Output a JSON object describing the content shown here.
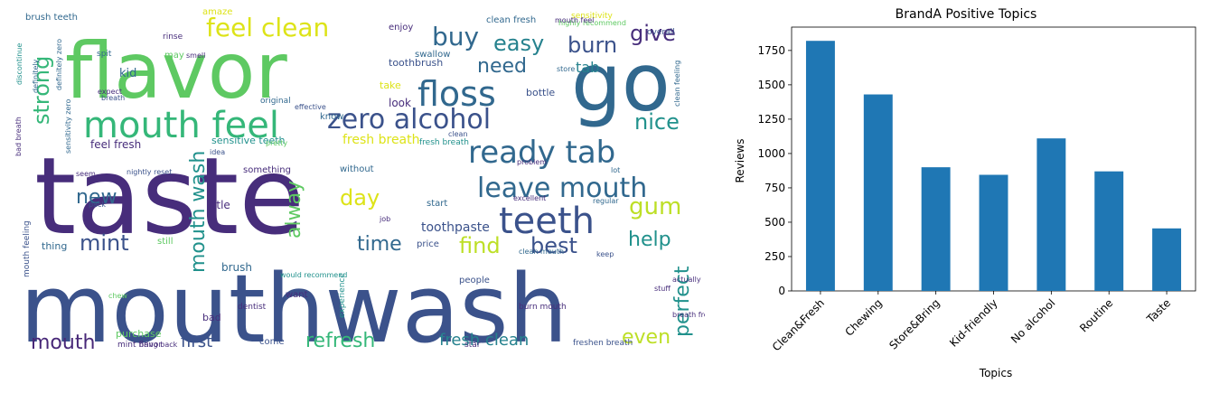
{
  "wordcloud": {
    "words": [
      {
        "text": "taste",
        "color": "#472d7b"
      },
      {
        "text": "mouthwash",
        "color": "#3b528b"
      },
      {
        "text": "flavor",
        "color": "#5ec962"
      },
      {
        "text": "go",
        "color": "#31688e"
      },
      {
        "text": "mouth feel",
        "color": "#35b779"
      },
      {
        "text": "zero alcohol",
        "color": "#3b528b"
      },
      {
        "text": "floss",
        "color": "#31688e"
      },
      {
        "text": "ready tab",
        "color": "#31688e"
      },
      {
        "text": "teeth",
        "color": "#3b528b"
      },
      {
        "text": "leave mouth",
        "color": "#31688e"
      },
      {
        "text": "feel clean",
        "color": "#dde318"
      },
      {
        "text": "buy",
        "color": "#31688e"
      },
      {
        "text": "easy",
        "color": "#26828e"
      },
      {
        "text": "burn",
        "color": "#3b528b"
      },
      {
        "text": "give",
        "color": "#472d7b"
      },
      {
        "text": "need",
        "color": "#31688e"
      },
      {
        "text": "tab",
        "color": "#26828e"
      },
      {
        "text": "nice",
        "color": "#21918c"
      },
      {
        "text": "strong",
        "color": "#35b779"
      },
      {
        "text": "mouth wash",
        "color": "#21918c"
      },
      {
        "text": "new",
        "color": "#31688e"
      },
      {
        "text": "day",
        "color": "#dde318"
      },
      {
        "text": "gum",
        "color": "#bddf26"
      },
      {
        "text": "alway",
        "color": "#5ec962"
      },
      {
        "text": "mint",
        "color": "#3b528b"
      },
      {
        "text": "time",
        "color": "#31688e"
      },
      {
        "text": "find",
        "color": "#bddf26"
      },
      {
        "text": "best",
        "color": "#3b528b"
      },
      {
        "text": "help",
        "color": "#21918c"
      },
      {
        "text": "perfect",
        "color": "#21918c"
      },
      {
        "text": "mouth",
        "color": "#482878"
      },
      {
        "text": "first",
        "color": "#3b528b"
      },
      {
        "text": "refresh",
        "color": "#35b779"
      },
      {
        "text": "fresh clean",
        "color": "#26828e"
      },
      {
        "text": "even",
        "color": "#bddf26"
      },
      {
        "text": "fresh breath",
        "color": "#dde318"
      },
      {
        "text": "toothpaste",
        "color": "#3b528b"
      },
      {
        "text": "feel fresh",
        "color": "#472d7b"
      },
      {
        "text": "sensitive teeth",
        "color": "#21918c"
      },
      {
        "text": "clean fresh",
        "color": "#31688e"
      },
      {
        "text": "toothbrush",
        "color": "#3b528b"
      },
      {
        "text": "bottle",
        "color": "#3b528b"
      },
      {
        "text": "look",
        "color": "#472d7b"
      },
      {
        "text": "kid",
        "color": "#31688e"
      },
      {
        "text": "little",
        "color": "#472d7b"
      },
      {
        "text": "brush",
        "color": "#31688e"
      },
      {
        "text": "purchase",
        "color": "#5ec962"
      },
      {
        "text": "without",
        "color": "#31688e"
      },
      {
        "text": "enjoy",
        "color": "#472d7b"
      },
      {
        "text": "amaze",
        "color": "#dde318"
      },
      {
        "text": "brush teeth",
        "color": "#31688e"
      },
      {
        "text": "swallow",
        "color": "#31688e"
      },
      {
        "text": "take",
        "color": "#dde318"
      },
      {
        "text": "thing",
        "color": "#31688e"
      },
      {
        "text": "bad",
        "color": "#472d7b"
      },
      {
        "text": "want",
        "color": "#472d7b"
      },
      {
        "text": "people",
        "color": "#3b528b"
      },
      {
        "text": "price",
        "color": "#3b528b"
      },
      {
        "text": "still",
        "color": "#5ec962"
      },
      {
        "text": "know",
        "color": "#31688e"
      },
      {
        "text": "start",
        "color": "#31688e"
      },
      {
        "text": "something",
        "color": "#472d7b"
      },
      {
        "text": "dentist",
        "color": "#472d7b"
      },
      {
        "text": "come",
        "color": "#3b528b"
      },
      {
        "text": "mint flavor",
        "color": "#472d7b"
      },
      {
        "text": "burn mouth",
        "color": "#472d7b"
      },
      {
        "text": "experience",
        "color": "#21918c"
      },
      {
        "text": "fresh breath",
        "color": "#21918c"
      },
      {
        "text": "bring back",
        "color": "#472d7b"
      },
      {
        "text": "star",
        "color": "#472d7b"
      },
      {
        "text": "freshen breath",
        "color": "#3b528b"
      },
      {
        "text": "sensitivity",
        "color": "#dde318"
      },
      {
        "text": "highly recommend",
        "color": "#5ec962"
      },
      {
        "text": "overall",
        "color": "#3b528b"
      },
      {
        "text": "rinse",
        "color": "#472d7b"
      },
      {
        "text": "spit",
        "color": "#31688e"
      },
      {
        "text": "may",
        "color": "#5ec962"
      },
      {
        "text": "smell",
        "color": "#472d7b"
      },
      {
        "text": "expect",
        "color": "#472d7b"
      },
      {
        "text": "original",
        "color": "#31688e"
      },
      {
        "text": "effective",
        "color": "#3b528b"
      },
      {
        "text": "idea",
        "color": "#3b528b"
      },
      {
        "text": "pretty",
        "color": "#5ec962"
      },
      {
        "text": "nightly reset",
        "color": "#3b528b"
      },
      {
        "text": "mouth feeling",
        "color": "#3b528b"
      },
      {
        "text": "pack",
        "color": "#3b528b"
      },
      {
        "text": "seem",
        "color": "#472d7b"
      },
      {
        "text": "excellent",
        "color": "#472d7b"
      },
      {
        "text": "regular",
        "color": "#31688e"
      },
      {
        "text": "lot",
        "color": "#31688e"
      },
      {
        "text": "problem",
        "color": "#472d7b"
      },
      {
        "text": "clean mouth",
        "color": "#31688e"
      },
      {
        "text": "mouth feel",
        "color": "#472d7b"
      },
      {
        "text": "actually",
        "color": "#472d7b"
      },
      {
        "text": "stuff",
        "color": "#472d7b"
      },
      {
        "text": "breath fresh",
        "color": "#472d7b"
      },
      {
        "text": "chew",
        "color": "#5ec962"
      },
      {
        "text": "keep",
        "color": "#3b528b"
      },
      {
        "text": "job",
        "color": "#472d7b"
      },
      {
        "text": "clean",
        "color": "#3b528b"
      },
      {
        "text": "store",
        "color": "#31688e"
      },
      {
        "text": "clean feeling",
        "color": "#31688e"
      },
      {
        "text": "definitely",
        "color": "#31688e"
      },
      {
        "text": "definitely zero",
        "color": "#31688e"
      },
      {
        "text": "discontinue",
        "color": "#21918c"
      },
      {
        "text": "sensitivity zero",
        "color": "#31688e"
      },
      {
        "text": "breath",
        "color": "#3b528b"
      },
      {
        "text": "would recommend",
        "color": "#21918c"
      },
      {
        "text": "bad breath",
        "color": "#472d7b"
      }
    ]
  },
  "chart_data": {
    "type": "bar",
    "title": "BrandA Positive Topics",
    "xlabel": "Topics",
    "ylabel": "Reviews",
    "categories": [
      "Clean&Fresh",
      "Chewing",
      "Store&Bring",
      "Kid-friendly",
      "No alcohol",
      "Routine",
      "Taste"
    ],
    "values": [
      1820,
      1430,
      900,
      845,
      1110,
      870,
      455
    ],
    "ylim": [
      0,
      1920
    ],
    "yticks": [
      0,
      250,
      500,
      750,
      1000,
      1250,
      1500,
      1750
    ],
    "bar_color": "#1f77b4",
    "grid": false
  }
}
